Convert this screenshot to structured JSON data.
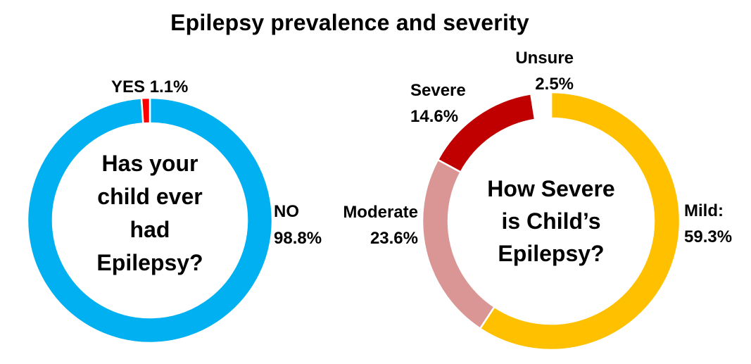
{
  "title": "Epilepsy prevalence and severity",
  "chart_data": [
    {
      "type": "pie",
      "donut": true,
      "center_text": [
        "Has your",
        "child ever",
        "had",
        "Epilepsy?"
      ],
      "slices": [
        {
          "category": "NO",
          "value": 98.8,
          "label": [
            "NO",
            "98.8%"
          ],
          "color": "#00B0F0"
        },
        {
          "category": "YES",
          "value": 1.1,
          "label": [
            "YES 1.1%"
          ],
          "color": "#FF0000"
        }
      ]
    },
    {
      "type": "pie",
      "donut": true,
      "center_text": [
        "How Severe",
        "is Child’s",
        "Epilepsy?"
      ],
      "slices": [
        {
          "category": "Mild",
          "value": 59.3,
          "label": [
            "Mild:",
            "59.3%"
          ],
          "color": "#FFC000"
        },
        {
          "category": "Moderate",
          "value": 23.6,
          "label": [
            "Moderate",
            "23.6%"
          ],
          "color": "#D99694"
        },
        {
          "category": "Severe",
          "value": 14.6,
          "label": [
            "Severe",
            "14.6%"
          ],
          "color": "#C00000"
        },
        {
          "category": "Unsure",
          "value": 2.5,
          "label": [
            "Unsure",
            "2.5%"
          ],
          "color": "#FFFFFF"
        }
      ]
    }
  ]
}
